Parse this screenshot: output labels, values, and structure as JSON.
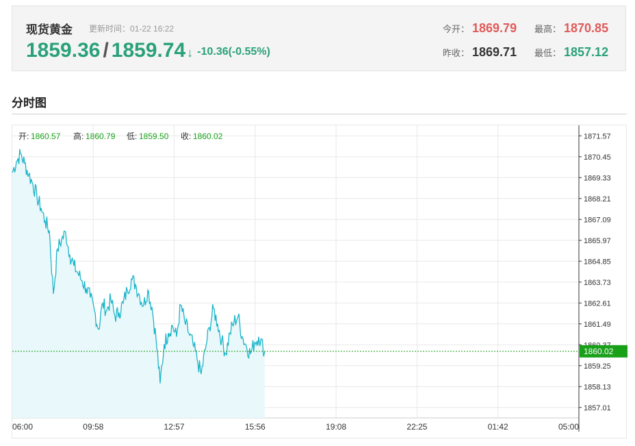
{
  "header": {
    "name": "现货黄金",
    "updated_label": "更新时间：",
    "updated_time": "01-22 16:22",
    "bid": "1859.36",
    "separator": "/",
    "ask": "1859.74",
    "arrow": "↓",
    "change": "-10.36(-0.55%)",
    "open_label": "今开：",
    "open": "1869.79",
    "high_label": "最高：",
    "high": "1870.85",
    "prev_close_label": "昨收：",
    "prev_close": "1869.71",
    "low_label": "最低：",
    "low": "1857.12",
    "colors": {
      "up": "#e05a5a",
      "down": "#2aa17a"
    }
  },
  "section": {
    "title": "分时图"
  },
  "chart_data": {
    "type": "area",
    "ohlc_box": {
      "open_label": "开:",
      "open": "1860.57",
      "high_label": "高:",
      "high": "1860.79",
      "low_label": "低:",
      "low": "1859.50",
      "close_label": "收:",
      "close": "1860.02"
    },
    "x_tick_labels": [
      "06:00",
      "09:58",
      "12:57",
      "15:56",
      "19:08",
      "22:25",
      "01:42",
      "05:00"
    ],
    "y_tick_labels": [
      "1871.57",
      "1870.45",
      "1869.33",
      "1868.21",
      "1867.09",
      "1865.97",
      "1864.85",
      "1863.73",
      "1862.61",
      "1861.49",
      "1860.37",
      "1859.25",
      "1858.13",
      "1857.01"
    ],
    "ylim": [
      1856.45,
      1872.13
    ],
    "session_minutes": 1380,
    "current_price": "1860.02",
    "series": [
      {
        "x_minutes": [
          0,
          10,
          20,
          30,
          40,
          50,
          60,
          70,
          80,
          90,
          100,
          110,
          120,
          130,
          140,
          150,
          160,
          170,
          180,
          190,
          200,
          210,
          220,
          230,
          240,
          250,
          260,
          270,
          280,
          290,
          300,
          310,
          320,
          330,
          340,
          350,
          360,
          370,
          380,
          390,
          400,
          410,
          420,
          430,
          440,
          450,
          460,
          470,
          480,
          490,
          500,
          510,
          520,
          530,
          540,
          550,
          560,
          570,
          580,
          590,
          600,
          615
        ],
        "values": [
          1869.6,
          1870.2,
          1870.6,
          1870.1,
          1869.5,
          1869.0,
          1868.3,
          1867.7,
          1867.0,
          1866.5,
          1863.1,
          1865.5,
          1866.0,
          1866.4,
          1865.2,
          1864.6,
          1864.2,
          1863.8,
          1863.4,
          1862.9,
          1862.2,
          1861.2,
          1862.6,
          1862.2,
          1862.8,
          1861.9,
          1862.1,
          1862.6,
          1863.3,
          1863.9,
          1863.6,
          1863.0,
          1862.5,
          1863.3,
          1862.4,
          1860.7,
          1858.3,
          1860.4,
          1861.0,
          1861.4,
          1860.8,
          1862.5,
          1861.6,
          1861.0,
          1860.4,
          1859.6,
          1858.8,
          1860.1,
          1861.3,
          1862.3,
          1861.5,
          1860.6,
          1859.9,
          1861.0,
          1861.6,
          1861.9,
          1860.8,
          1860.3,
          1859.9,
          1860.5,
          1860.8,
          1860.02
        ]
      }
    ],
    "colors": {
      "line": "#1ab4c9",
      "fill": "#e9f8fa",
      "grid": "#e8e8e8",
      "axis": "#333333",
      "price_line": "#19a019",
      "price_tag": "#19a019",
      "ohlc_value": "#19a019"
    }
  }
}
